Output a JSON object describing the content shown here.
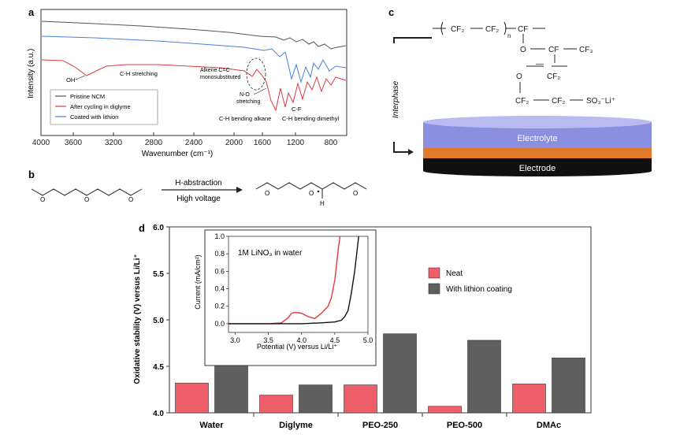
{
  "panels": {
    "a": "a",
    "b": "b",
    "c": "c",
    "d": "d"
  },
  "panel_a": {
    "ylabel": "Intensity (a.u.)",
    "xlabel": "Wavenumber (cm⁻¹)",
    "xticks": [
      "4000",
      "3600",
      "3200",
      "2800",
      "2400",
      "2000",
      "1600",
      "1200",
      "800"
    ],
    "legend": [
      {
        "label": "Pristine NCM",
        "color": "#555555"
      },
      {
        "label": "After cycling in diglyme",
        "color": "#e0393e"
      },
      {
        "label": "Coated with lithion",
        "color": "#4a7fd4"
      }
    ],
    "annotations": {
      "oh": "OH⁻",
      "ch_stretch": "C-H stretching",
      "alkene_1": "Alkene C=C",
      "alkene_2": "monosubstituted",
      "no_1": "N-O",
      "no_2": "stretching",
      "cf": "C-F",
      "ch_bend_alkane": "C-H bending alkane",
      "ch_bend_dimethyl": "C-H bending dimethyl"
    }
  },
  "panel_b": {
    "arrow_top": "H-abstraction",
    "arrow_bottom": "High voltage",
    "o_atom": "O",
    "h_atom": "H"
  },
  "panel_c": {
    "interphase": "Interphase",
    "electrolyte": "Electrolyte",
    "electrode": "Electrode",
    "cf2": "CF₂",
    "n": "n",
    "cf": "CF",
    "o": "O",
    "cf3": "CF₃",
    "so3li": "SO₃⁻Li⁺",
    "electrolyte_color": "#8a8fe0",
    "interphase_color": "#e07a2a",
    "electrode_color": "#111111"
  },
  "panel_d": {
    "ylabel": "Oxidative stability (V) versus Li/Li⁺",
    "legend_neat": "Neat",
    "legend_coated": "With lithion coating",
    "inset_label": "1M LiNO₃ in water",
    "inset_ylabel": "Current (mA/cm²)",
    "inset_xlabel": "Potential (V) versus Li/Li⁺",
    "neat_color": "#ef5f6a",
    "coated_color": "#5f5f5f"
  },
  "chart_data": [
    {
      "type": "bar",
      "title": "",
      "xlabel": "",
      "ylabel": "Oxidative stability (V) versus Li/Li⁺",
      "categories": [
        "Water",
        "Diglyme",
        "PEO-250",
        "PEO-500",
        "DMAc"
      ],
      "series": [
        {
          "name": "Neat",
          "values": [
            4.32,
            4.19,
            4.3,
            4.07,
            4.31
          ]
        },
        {
          "name": "With lithion coating",
          "values": [
            4.59,
            4.3,
            4.85,
            4.78,
            4.59
          ]
        }
      ],
      "ylim": [
        4.0,
        6.0
      ],
      "yticks": [
        "4.0",
        "4.5",
        "5.0",
        "5.5",
        "6.0"
      ],
      "legend_position": "right"
    },
    {
      "type": "line",
      "title": "1M LiNO₃ in water",
      "xlabel": "Potential (V) versus Li/Li⁺",
      "ylabel": "Current (mA/cm²)",
      "xlim": [
        2.9,
        5.0
      ],
      "ylim": [
        -0.1,
        1.0
      ],
      "xticks": [
        "3.0",
        "3.5",
        "4.0",
        "4.5",
        "5.0"
      ],
      "yticks": [
        "0.0",
        "0.2",
        "0.4",
        "0.6",
        "0.8",
        "1.0"
      ],
      "series": [
        {
          "name": "Neat",
          "x": [
            2.9,
            3.5,
            3.7,
            3.8,
            3.85,
            3.9,
            4.0,
            4.1,
            4.2,
            4.3,
            4.4,
            4.45,
            4.5,
            4.53,
            4.56,
            4.58
          ],
          "y": [
            0.0,
            0.0,
            0.01,
            0.07,
            0.12,
            0.13,
            0.12,
            0.08,
            0.06,
            0.12,
            0.2,
            0.3,
            0.5,
            0.7,
            0.9,
            1.0
          ]
        },
        {
          "name": "With lithion coating",
          "x": [
            2.9,
            3.5,
            4.0,
            4.3,
            4.5,
            4.6,
            4.65,
            4.7,
            4.75,
            4.8,
            4.83,
            4.86
          ],
          "y": [
            0.0,
            0.0,
            0.0,
            0.01,
            0.02,
            0.04,
            0.08,
            0.15,
            0.35,
            0.6,
            0.8,
            1.0
          ]
        }
      ]
    },
    {
      "type": "line",
      "title": "",
      "xlabel": "Wavenumber (cm⁻¹)",
      "ylabel": "Intensity (a.u.)",
      "xlim": [
        4000,
        700
      ],
      "series": [
        {
          "name": "Pristine NCM",
          "x": [
            4000,
            3600,
            3200,
            2800,
            2400,
            2000,
            1600,
            1200,
            800,
            700
          ],
          "y": [
            9.6,
            9.4,
            9.2,
            9.0,
            8.8,
            8.5,
            8.2,
            7.9,
            7.6,
            7.5
          ]
        },
        {
          "name": "Coated with lithion",
          "x": [
            4000,
            3600,
            3200,
            2800,
            2400,
            2000,
            1600,
            1200,
            900,
            700
          ],
          "y": [
            8.9,
            8.8,
            8.7,
            8.6,
            8.5,
            8.4,
            8.2,
            7.6,
            7.2,
            7.4
          ]
        },
        {
          "name": "After cycling in diglyme",
          "x": [
            4000,
            3600,
            3400,
            3200,
            2800,
            2400,
            2000,
            1600,
            1400,
            1200,
            1000,
            800
          ],
          "y": [
            7.8,
            7.6,
            6.5,
            7.2,
            7.0,
            6.8,
            6.6,
            6.0,
            3.0,
            3.5,
            5.0,
            6.0
          ]
        }
      ]
    }
  ]
}
